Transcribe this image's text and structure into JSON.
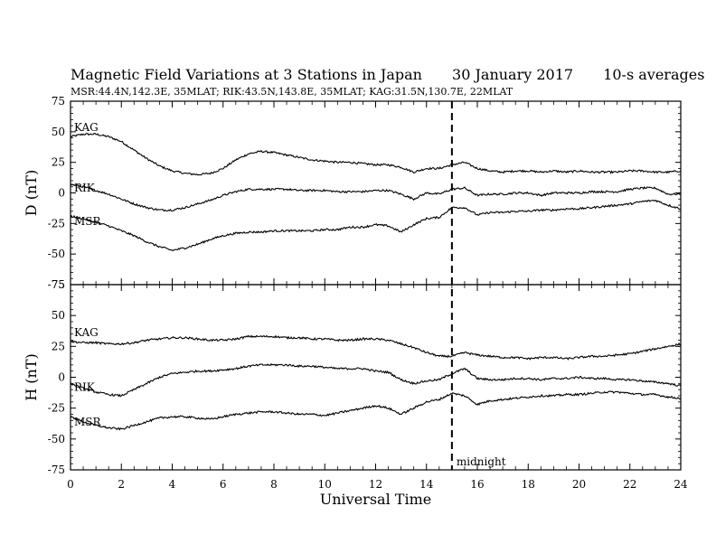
{
  "chart_data": {
    "type": "line",
    "title": "Magnetic Field Variations at 3 Stations in Japan",
    "date": "30 January 2017",
    "averaging": "10-s averages",
    "subtitle": "MSR:44.4N,142.3E, 35MLAT;  RIK:43.5N,143.8E, 35MLAT;  KAG:31.5N,130.7E, 22MLAT",
    "xlabel": "Universal Time",
    "xlim": [
      0,
      24
    ],
    "xticks": [
      0,
      2,
      4,
      6,
      8,
      10,
      12,
      14,
      16,
      18,
      20,
      22,
      24
    ],
    "annotation": {
      "text": "midnight",
      "x": 15
    },
    "panels": [
      {
        "ylabel": "D (nT)",
        "ylim": [
          -75,
          75
        ],
        "yticks": [
          75,
          50,
          25,
          0,
          -25,
          -50,
          -75
        ],
        "series": [
          {
            "name": "KAG",
            "x": [
              0,
              0.5,
              1,
              1.5,
              2,
              2.5,
              3,
              3.5,
              4,
              4.5,
              5,
              5.5,
              6,
              6.5,
              7,
              7.5,
              8,
              8.5,
              9,
              9.5,
              10,
              10.5,
              11,
              11.5,
              12,
              12.5,
              13,
              13.5,
              14,
              14.5,
              15,
              15.5,
              16,
              16.5,
              17,
              17.5,
              18,
              18.5,
              19,
              19.5,
              20,
              20.5,
              21,
              21.5,
              22,
              22.5,
              23,
              23.5,
              24
            ],
            "y": [
              46,
              48,
              48,
              46,
              42,
              35,
              28,
              22,
              18,
              16,
              15,
              16,
              20,
              27,
              32,
              34,
              33,
              31,
              29,
              27,
              26,
              25,
              25,
              24,
              23,
              23,
              21,
              17,
              20,
              20,
              23,
              25,
              20,
              18,
              17,
              18,
              18,
              17,
              18,
              17,
              18,
              17,
              17,
              17,
              18,
              18,
              17,
              17,
              18
            ]
          },
          {
            "name": "RIK",
            "x": [
              0,
              0.5,
              1,
              1.5,
              2,
              2.5,
              3,
              3.5,
              4,
              4.5,
              5,
              5.5,
              6,
              6.5,
              7,
              7.5,
              8,
              8.5,
              9,
              9.5,
              10,
              10.5,
              11,
              11.5,
              12,
              12.5,
              13,
              13.5,
              14,
              14.5,
              15,
              15.5,
              16,
              16.5,
              17,
              17.5,
              18,
              18.5,
              19,
              19.5,
              20,
              20.5,
              21,
              21.5,
              22,
              22.5,
              23,
              23.5,
              24
            ],
            "y": [
              7,
              5,
              2,
              -1,
              -5,
              -9,
              -12,
              -14,
              -14,
              -12,
              -9,
              -6,
              -2,
              1,
              3,
              3,
              3,
              3,
              2,
              2,
              2,
              1,
              1,
              1,
              2,
              2,
              -1,
              -5,
              0,
              -1,
              3,
              4,
              -2,
              -1,
              -1,
              0,
              0,
              -2,
              0,
              0,
              0,
              1,
              1,
              1,
              3,
              4,
              4,
              -1,
              -1
            ]
          },
          {
            "name": "MSR",
            "x": [
              0,
              0.5,
              1,
              1.5,
              2,
              2.5,
              3,
              3.5,
              4,
              4.5,
              5,
              5.5,
              6,
              6.5,
              7,
              7.5,
              8,
              8.5,
              9,
              9.5,
              10,
              10.5,
              11,
              11.5,
              12,
              12.5,
              13,
              13.5,
              14,
              14.5,
              15,
              15.5,
              16,
              16.5,
              17,
              17.5,
              18,
              18.5,
              19,
              19.5,
              20,
              20.5,
              21,
              21.5,
              22,
              22.5,
              23,
              23.5,
              24
            ],
            "y": [
              -19,
              -21,
              -24,
              -27,
              -31,
              -35,
              -40,
              -44,
              -47,
              -45,
              -42,
              -38,
              -35,
              -33,
              -32,
              -32,
              -31,
              -31,
              -31,
              -31,
              -30,
              -30,
              -28,
              -28,
              -26,
              -27,
              -32,
              -26,
              -21,
              -20,
              -12,
              -12,
              -18,
              -16,
              -16,
              -15,
              -15,
              -14,
              -14,
              -13,
              -13,
              -12,
              -11,
              -10,
              -9,
              -7,
              -6,
              -10,
              -13
            ]
          }
        ]
      },
      {
        "ylabel": "H (nT)",
        "ylim": [
          -75,
          75
        ],
        "yticks": [
          75,
          50,
          25,
          0,
          -25,
          -50,
          -75
        ],
        "series": [
          {
            "name": "KAG",
            "x": [
              0,
              0.5,
              1,
              1.5,
              2,
              2.5,
              3,
              3.5,
              4,
              4.5,
              5,
              5.5,
              6,
              6.5,
              7,
              7.5,
              8,
              8.5,
              9,
              9.5,
              10,
              10.5,
              11,
              11.5,
              12,
              12.5,
              13,
              13.5,
              14,
              14.5,
              15,
              15.5,
              16,
              16.5,
              17,
              17.5,
              18,
              18.5,
              19,
              19.5,
              20,
              20.5,
              21,
              21.5,
              22,
              22.5,
              23,
              23.5,
              24
            ],
            "y": [
              29,
              28,
              28,
              27,
              27,
              28,
              30,
              31,
              32,
              32,
              31,
              30,
              30,
              31,
              33,
              33,
              33,
              32,
              32,
              31,
              31,
              30,
              30,
              31,
              31,
              30,
              27,
              24,
              20,
              17,
              17,
              20,
              18,
              17,
              16,
              16,
              15,
              16,
              16,
              15,
              16,
              17,
              17,
              18,
              19,
              21,
              23,
              25,
              27
            ]
          },
          {
            "name": "RIK",
            "x": [
              0,
              0.5,
              1,
              1.5,
              2,
              2.5,
              3,
              3.5,
              4,
              4.5,
              5,
              5.5,
              6,
              6.5,
              7,
              7.5,
              8,
              8.5,
              9,
              9.5,
              10,
              10.5,
              11,
              11.5,
              12,
              12.5,
              13,
              13.5,
              14,
              14.5,
              15,
              15.5,
              16,
              16.5,
              17,
              17.5,
              18,
              18.5,
              19,
              19.5,
              20,
              20.5,
              21,
              21.5,
              22,
              22.5,
              23,
              23.5,
              24
            ],
            "y": [
              -5,
              -9,
              -12,
              -14,
              -15,
              -10,
              -5,
              0,
              3,
              4,
              5,
              5,
              6,
              7,
              9,
              10,
              10,
              10,
              9,
              9,
              8,
              7,
              7,
              7,
              5,
              4,
              -2,
              -5,
              -3,
              -2,
              3,
              7,
              -1,
              -2,
              -2,
              -1,
              -1,
              -2,
              -1,
              -1,
              0,
              -1,
              -1,
              -2,
              -2,
              -3,
              -4,
              -5,
              -7
            ]
          },
          {
            "name": "MSR",
            "x": [
              0,
              0.5,
              1,
              1.5,
              2,
              2.5,
              3,
              3.5,
              4,
              4.5,
              5,
              5.5,
              6,
              6.5,
              7,
              7.5,
              8,
              8.5,
              9,
              9.5,
              10,
              10.5,
              11,
              11.5,
              12,
              12.5,
              13,
              13.5,
              14,
              14.5,
              15,
              15.5,
              16,
              16.5,
              17,
              17.5,
              18,
              18.5,
              19,
              19.5,
              20,
              20.5,
              21,
              21.5,
              22,
              22.5,
              23,
              23.5,
              24
            ],
            "y": [
              -32,
              -36,
              -39,
              -41,
              -42,
              -39,
              -36,
              -33,
              -32,
              -32,
              -33,
              -34,
              -32,
              -30,
              -29,
              -28,
              -28,
              -29,
              -30,
              -30,
              -31,
              -29,
              -27,
              -25,
              -23,
              -25,
              -30,
              -25,
              -20,
              -18,
              -13,
              -15,
              -22,
              -19,
              -18,
              -17,
              -16,
              -15,
              -15,
              -14,
              -14,
              -13,
              -12,
              -12,
              -13,
              -14,
              -14,
              -16,
              -17
            ]
          }
        ]
      }
    ],
    "line_color": "#000000"
  }
}
